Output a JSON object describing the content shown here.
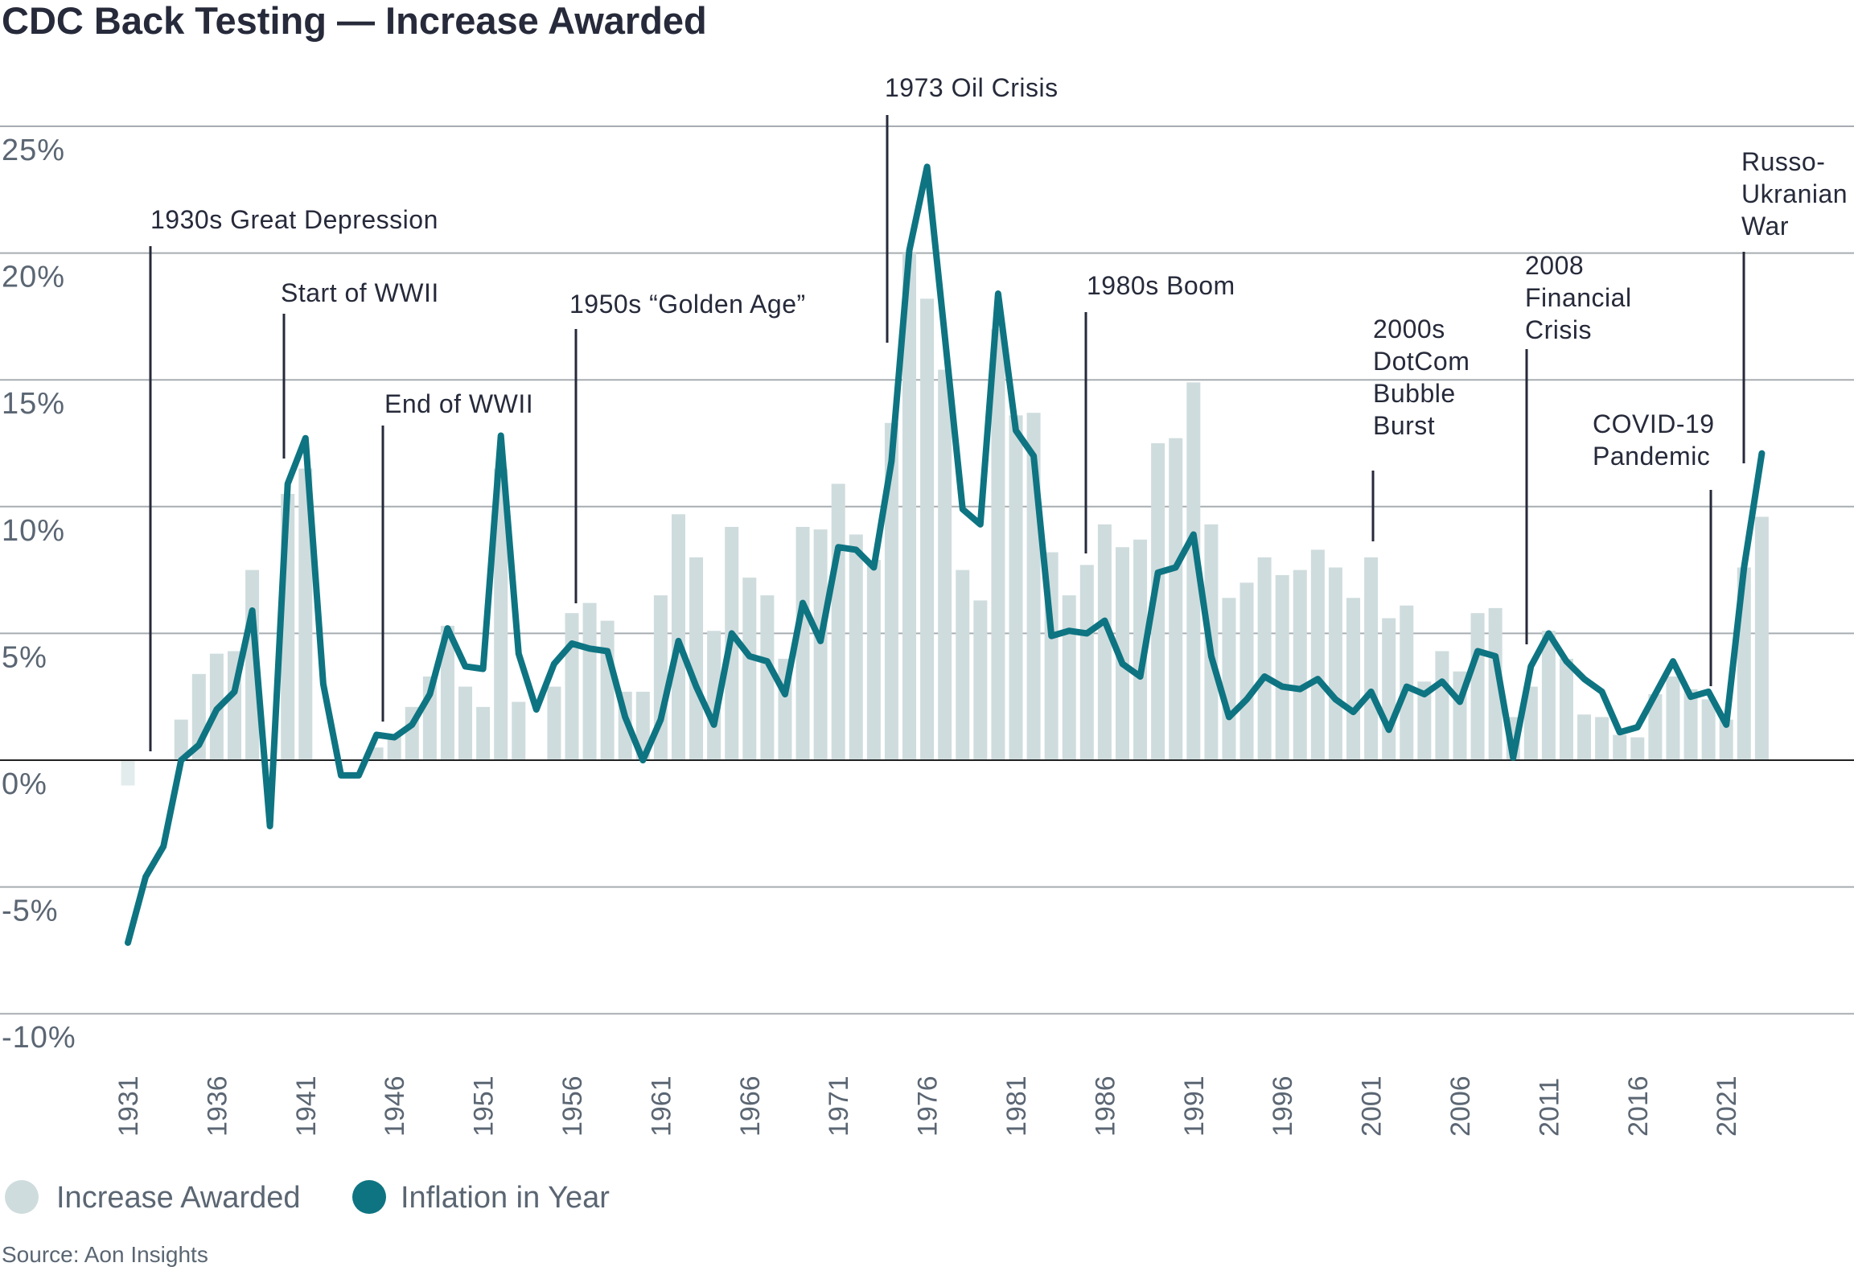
{
  "chart_data": {
    "type": "bar",
    "title": "CDC Back Testing — Increase Awarded",
    "xlabel": "",
    "ylabel": "",
    "ylim": [
      -10,
      25
    ],
    "yticks": [
      "25%",
      "20%",
      "15%",
      "10%",
      "5%",
      "0%",
      "-5%",
      "-10%"
    ],
    "ytick_values": [
      25,
      20,
      15,
      10,
      5,
      0,
      -5,
      -10
    ],
    "xticks": [
      "1931",
      "1936",
      "1941",
      "1946",
      "1951",
      "1956",
      "1961",
      "1966",
      "1971",
      "1976",
      "1981",
      "1986",
      "1991",
      "1996",
      "2001",
      "2006",
      "2011",
      "2016",
      "2021"
    ],
    "grid": true,
    "legend_position": "bottom-left",
    "years": [
      1931,
      1932,
      1933,
      1934,
      1935,
      1936,
      1937,
      1938,
      1939,
      1940,
      1941,
      1942,
      1943,
      1944,
      1945,
      1946,
      1947,
      1948,
      1949,
      1950,
      1951,
      1952,
      1953,
      1954,
      1955,
      1956,
      1957,
      1958,
      1959,
      1960,
      1961,
      1962,
      1963,
      1964,
      1965,
      1966,
      1967,
      1968,
      1969,
      1970,
      1971,
      1972,
      1973,
      1974,
      1975,
      1976,
      1977,
      1978,
      1979,
      1980,
      1981,
      1982,
      1983,
      1984,
      1985,
      1986,
      1987,
      1988,
      1989,
      1990,
      1991,
      1992,
      1993,
      1994,
      1995,
      1996,
      1997,
      1998,
      1999,
      2000,
      2001,
      2002,
      2003,
      2004,
      2005,
      2006,
      2007,
      2008,
      2009,
      2010,
      2011,
      2012,
      2013,
      2014,
      2015,
      2016,
      2017,
      2018,
      2019,
      2020,
      2021,
      2022,
      2023
    ],
    "series": [
      {
        "name": "Increase Awarded",
        "type": "bar",
        "color": "#cfdcdd",
        "values": [
          -1.0,
          0,
          0,
          1.6,
          3.4,
          4.2,
          4.3,
          7.5,
          0,
          10.5,
          11.5,
          0,
          0,
          0,
          0.5,
          1.0,
          2.1,
          3.3,
          5.3,
          2.9,
          2.1,
          11.5,
          2.3,
          0,
          2.9,
          5.8,
          6.2,
          5.5,
          2.7,
          2.7,
          6.5,
          9.7,
          8.0,
          5.1,
          9.2,
          7.2,
          6.5,
          4.0,
          9.2,
          9.1,
          10.9,
          8.9,
          7.9,
          13.3,
          20.0,
          18.2,
          15.4,
          7.5,
          6.3,
          17.0,
          13.6,
          13.7,
          8.2,
          6.5,
          7.7,
          9.3,
          8.4,
          8.7,
          12.5,
          12.7,
          14.9,
          9.3,
          6.4,
          7.0,
          8.0,
          7.3,
          7.5,
          8.3,
          7.6,
          6.4,
          8.0,
          5.6,
          6.1,
          3.1,
          4.3,
          3.5,
          5.8,
          6.0,
          1.7,
          2.9,
          5.1,
          4.0,
          1.8,
          1.7,
          1.0,
          0.9,
          2.6,
          3.3,
          2.8,
          2.4,
          1.6,
          7.6,
          9.6
        ]
      },
      {
        "name": "Inflation in Year",
        "type": "line",
        "color": "#0e7482",
        "values": [
          -7.2,
          -4.6,
          -3.4,
          0,
          0.6,
          2.0,
          2.7,
          5.9,
          -2.6,
          10.9,
          12.7,
          3.0,
          -0.6,
          -0.6,
          1.0,
          0.9,
          1.4,
          2.6,
          5.2,
          3.7,
          3.6,
          12.8,
          4.2,
          2.0,
          3.8,
          4.6,
          4.4,
          4.3,
          1.7,
          0,
          1.6,
          4.7,
          2.9,
          1.4,
          5.0,
          4.1,
          3.9,
          2.6,
          6.2,
          4.7,
          8.4,
          8.3,
          7.6,
          11.8,
          20.1,
          23.4,
          16.7,
          9.9,
          9.3,
          18.4,
          13.0,
          12.0,
          4.9,
          5.1,
          5.0,
          5.5,
          3.8,
          3.3,
          7.4,
          7.6,
          8.9,
          4.1,
          1.7,
          2.4,
          3.3,
          2.9,
          2.8,
          3.2,
          2.4,
          1.9,
          2.7,
          1.2,
          2.9,
          2.6,
          3.1,
          2.3,
          4.3,
          4.1,
          0.1,
          3.7,
          5.0,
          3.9,
          3.2,
          2.7,
          1.1,
          1.3,
          2.6,
          3.9,
          2.5,
          2.7,
          1.4,
          7.6,
          12.1
        ]
      }
    ],
    "annotations": [
      {
        "lines": [
          "1930s Great Depression"
        ]
      },
      {
        "lines": [
          "Start of WWII"
        ]
      },
      {
        "lines": [
          "End of WWII"
        ]
      },
      {
        "lines": [
          "1950s “Golden Age”"
        ]
      },
      {
        "lines": [
          "1973 Oil Crisis"
        ]
      },
      {
        "lines": [
          "1980s Boom"
        ]
      },
      {
        "lines": [
          "2000s",
          "DotCom",
          "Bubble",
          "Burst"
        ]
      },
      {
        "lines": [
          "2008",
          "Financial",
          "Crisis"
        ]
      },
      {
        "lines": [
          "COVID-19",
          "Pandemic"
        ]
      },
      {
        "lines": [
          "Russo-",
          "Ukranian",
          "War"
        ]
      }
    ],
    "source": "Source: Aon Insights"
  }
}
